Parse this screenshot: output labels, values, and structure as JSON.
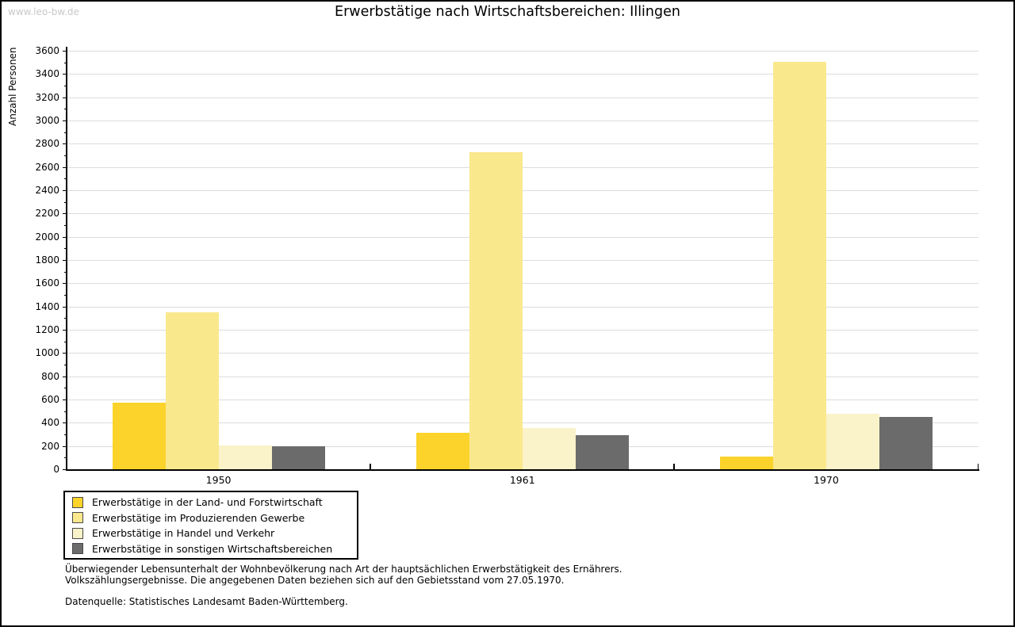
{
  "page": {
    "watermark": "www.leo-bw.de"
  },
  "chart_data": {
    "type": "bar",
    "title": "Erwerbstätige nach Wirtschaftsbereichen: Illingen",
    "ylabel": "Anzahl Personen",
    "xlabel": "",
    "ylim": [
      0,
      3600
    ],
    "ytick_step": 200,
    "yminor_step": 100,
    "grid": true,
    "legend_position": "bottom-left",
    "categories": [
      "1950",
      "1961",
      "1970"
    ],
    "series": [
      {
        "id": "land-forstwirtschaft",
        "name": "Erwerbstätige in der Land- und Forstwirtschaft",
        "color": "#FBD32B",
        "values": [
          575,
          315,
          110
        ]
      },
      {
        "id": "produzierendes-gewerbe",
        "name": "Erwerbstätige im Produzierenden Gewerbe",
        "color": "#FAE88D",
        "values": [
          1350,
          2730,
          3505
        ]
      },
      {
        "id": "handel-verkehr",
        "name": "Erwerbstätige in Handel und Verkehr",
        "color": "#FAF2C8",
        "values": [
          205,
          355,
          480
        ]
      },
      {
        "id": "sonstige-wirtschaftsbereiche",
        "name": "Erwerbstätige in sonstigen Wirtschaftsbereichen",
        "color": "#6B6B6B",
        "values": [
          200,
          290,
          450
        ]
      }
    ]
  },
  "footer": {
    "line1": "Überwiegender Lebensunterhalt der Wohnbevölkerung nach Art der hauptsächlichen Erwerbstätigkeit des Ernährers.",
    "line2": "Volkszählungsergebnisse. Die angegebenen Daten beziehen sich auf den Gebietsstand vom 27.05.1970.",
    "source": "Datenquelle: Statistisches Landesamt Baden-Württemberg."
  },
  "colors": {
    "gridline": "#DCDCDC",
    "axis": "#000000",
    "watermark": "#C8C8C8"
  }
}
